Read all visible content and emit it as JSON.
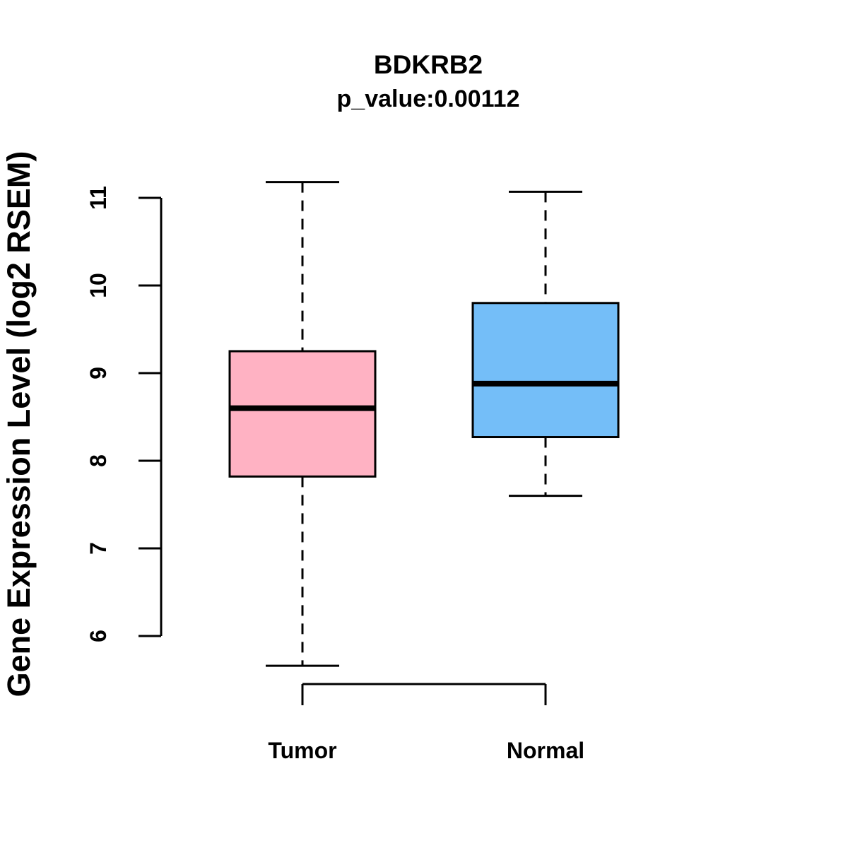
{
  "chart_data": {
    "type": "boxplot",
    "title": "BDKRB2",
    "subtitle": "p_value:0.00112",
    "ylabel": "Gene Expression Level (log2 RSEM)",
    "xlabel": "",
    "categories": [
      "Tumor",
      "Normal"
    ],
    "series": [
      {
        "name": "Tumor",
        "fill": "#FFB2C3",
        "lower_whisker": 5.66,
        "q1": 7.82,
        "median": 8.6,
        "q3": 9.25,
        "upper_whisker": 11.18
      },
      {
        "name": "Normal",
        "fill": "#74BEF8",
        "lower_whisker": 7.6,
        "q1": 8.27,
        "median": 8.88,
        "q3": 9.8,
        "upper_whisker": 11.07
      }
    ],
    "yticks": [
      6,
      7,
      8,
      9,
      10,
      11
    ],
    "ylim": [
      5.4,
      11.3
    ],
    "grid": false,
    "legend_position": "none",
    "stroke_color": "#000000",
    "background_color": "#ffffff"
  }
}
